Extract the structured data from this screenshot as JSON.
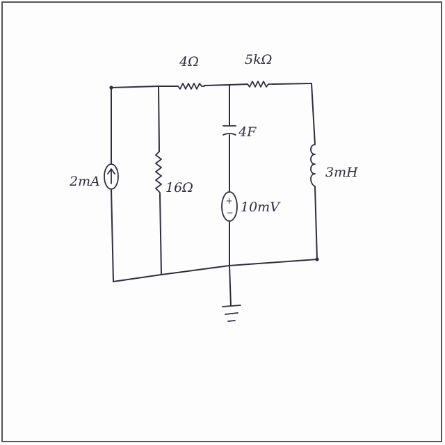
{
  "diagram": {
    "components": [
      {
        "id": "isrc",
        "type": "current-source",
        "label": "2mA"
      },
      {
        "id": "r16",
        "type": "resistor",
        "label": "16Ω"
      },
      {
        "id": "r4",
        "type": "resistor",
        "label": "4Ω"
      },
      {
        "id": "r5k",
        "type": "resistor",
        "label": "5kΩ"
      },
      {
        "id": "cap",
        "type": "capacitor",
        "label": "4F"
      },
      {
        "id": "vsrc",
        "type": "voltage-source",
        "label": "10mV",
        "polarity": [
          "+",
          "−"
        ]
      },
      {
        "id": "ind",
        "type": "inductor",
        "label": "3mH"
      },
      {
        "id": "gnd",
        "type": "ground",
        "label": ""
      }
    ],
    "colors": {
      "ink": "#2e2e40",
      "paper": "#fdfdfd",
      "border": "#555555"
    }
  }
}
